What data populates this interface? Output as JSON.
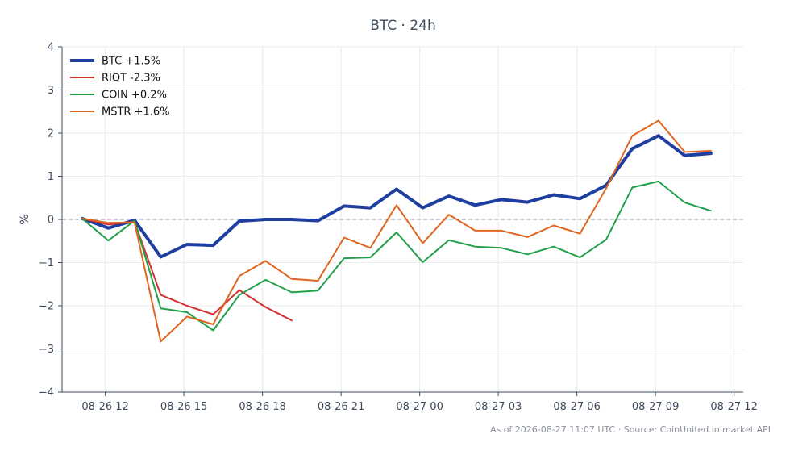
{
  "chart_data": {
    "type": "line",
    "title": "BTC · 24h",
    "ylabel": "%",
    "xlabel": "",
    "ylim": [
      -4,
      4
    ],
    "yticks": [
      -4,
      -3,
      -2,
      -1,
      0,
      1,
      2,
      3,
      4
    ],
    "xlim": [
      "08-26 10:21",
      "08-27 12:21"
    ],
    "xticks": [
      {
        "t": "08-26 12:00",
        "label": "08-26 12"
      },
      {
        "t": "08-26 15:00",
        "label": "08-26 15"
      },
      {
        "t": "08-26 18:00",
        "label": "08-26 18"
      },
      {
        "t": "08-26 21:00",
        "label": "08-26 21"
      },
      {
        "t": "08-27 00:00",
        "label": "08-27 00"
      },
      {
        "t": "08-27 03:00",
        "label": "08-27 03"
      },
      {
        "t": "08-27 06:00",
        "label": "08-27 06"
      },
      {
        "t": "08-27 09:00",
        "label": "08-27 09"
      },
      {
        "t": "08-27 12:00",
        "label": "08-27 12"
      }
    ],
    "x": [
      "08-26 11:07",
      "08-26 12:07",
      "08-26 13:07",
      "08-26 14:07",
      "08-26 15:07",
      "08-26 16:07",
      "08-26 17:07",
      "08-26 18:07",
      "08-26 19:07",
      "08-26 20:07",
      "08-26 21:07",
      "08-26 22:07",
      "08-26 23:07",
      "08-27 00:07",
      "08-27 01:07",
      "08-27 02:07",
      "08-27 03:07",
      "08-27 04:07",
      "08-27 05:07",
      "08-27 06:07",
      "08-27 07:07",
      "08-27 08:07",
      "08-27 09:07",
      "08-27 10:07",
      "08-27 11:07"
    ],
    "series": [
      {
        "name": "BTC +1.5%",
        "color": "#1f3fa0",
        "width": 4,
        "values": [
          0.02,
          -0.2,
          -0.02,
          -0.87,
          -0.58,
          -0.6,
          -0.04,
          0.0,
          0.0,
          -0.03,
          0.31,
          0.27,
          0.7,
          0.27,
          0.54,
          0.33,
          0.46,
          0.4,
          0.57,
          0.48,
          0.79,
          1.64,
          1.94,
          1.48,
          1.53
        ]
      },
      {
        "name": "RIOT -2.3%",
        "color": "#d42f2f",
        "width": 2,
        "values": [
          0.02,
          -0.12,
          -0.05,
          -1.75,
          -2.0,
          -2.2,
          -1.64,
          -2.03,
          -2.34,
          null,
          null,
          null,
          null,
          null,
          null,
          null,
          null,
          null,
          null,
          null,
          null,
          null,
          null,
          null,
          null
        ]
      },
      {
        "name": "COIN +0.2%",
        "color": "#22a04a",
        "width": 2,
        "values": [
          0.02,
          -0.49,
          -0.03,
          -2.06,
          -2.15,
          -2.57,
          -1.75,
          -1.4,
          -1.69,
          -1.65,
          -0.9,
          -0.88,
          -0.3,
          -0.99,
          -0.48,
          -0.63,
          -0.66,
          -0.81,
          -0.63,
          -0.88,
          -0.47,
          0.74,
          0.88,
          0.39,
          0.2
        ]
      },
      {
        "name": "MSTR +1.6%",
        "color": "#e0651e",
        "width": 2,
        "values": [
          0.02,
          -0.08,
          -0.07,
          -2.83,
          -2.25,
          -2.43,
          -1.31,
          -0.96,
          -1.38,
          -1.42,
          -0.42,
          -0.66,
          0.33,
          -0.55,
          0.11,
          -0.26,
          -0.26,
          -0.41,
          -0.14,
          -0.33,
          0.72,
          1.94,
          2.29,
          1.56,
          1.59
        ]
      }
    ],
    "reference_line": {
      "y": 0,
      "style": "dashed",
      "color": "#8e9ab2"
    },
    "grid": true,
    "legend": "top-left",
    "footer": "As of 2026-08-27 11:07 UTC · Source: CoinUnited.io market API"
  }
}
